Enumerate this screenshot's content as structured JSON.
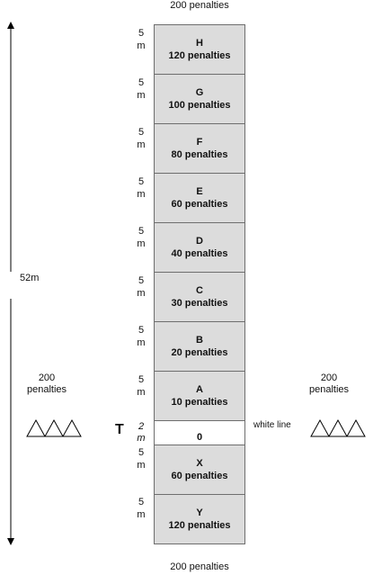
{
  "top_label": "200 penalties",
  "bottom_label": "200 penalties",
  "side_left": {
    "line1": "200",
    "line2": "penalties"
  },
  "side_right": {
    "line1": "200",
    "line2": "penalties"
  },
  "length_label": "52m",
  "tee_label": "T",
  "white_line_label": "white line",
  "zones": [
    {
      "letter": "H",
      "penalty": "120 penalties",
      "distance_num": "5",
      "distance_unit": "m"
    },
    {
      "letter": "G",
      "penalty": "100 penalties",
      "distance_num": "5",
      "distance_unit": "m"
    },
    {
      "letter": "F",
      "penalty": "80 penalties",
      "distance_num": "5",
      "distance_unit": "m"
    },
    {
      "letter": "E",
      "penalty": "60 penalties",
      "distance_num": "5",
      "distance_unit": "m"
    },
    {
      "letter": "D",
      "penalty": "40 penalties",
      "distance_num": "5",
      "distance_unit": "m"
    },
    {
      "letter": "C",
      "penalty": "30 penalties",
      "distance_num": "5",
      "distance_unit": "m"
    },
    {
      "letter": "B",
      "penalty": "20 penalties",
      "distance_num": "5",
      "distance_unit": "m"
    },
    {
      "letter": "A",
      "penalty": "10 penalties",
      "distance_num": "5",
      "distance_unit": "m"
    },
    {
      "letter": "0",
      "penalty": "",
      "distance_num": "2",
      "distance_unit": "m"
    },
    {
      "letter": "X",
      "penalty": "60 penalties",
      "distance_num": "5",
      "distance_unit": "m"
    },
    {
      "letter": "Y",
      "penalty": "120 penalties",
      "distance_num": "5",
      "distance_unit": "m"
    }
  ],
  "colors": {
    "zone_fill": "#dcdcdc",
    "white_zone": "#ffffff",
    "border": "#6e6e6e"
  },
  "icons": [
    "double-arrow-icon",
    "triangles-marker-icon"
  ]
}
